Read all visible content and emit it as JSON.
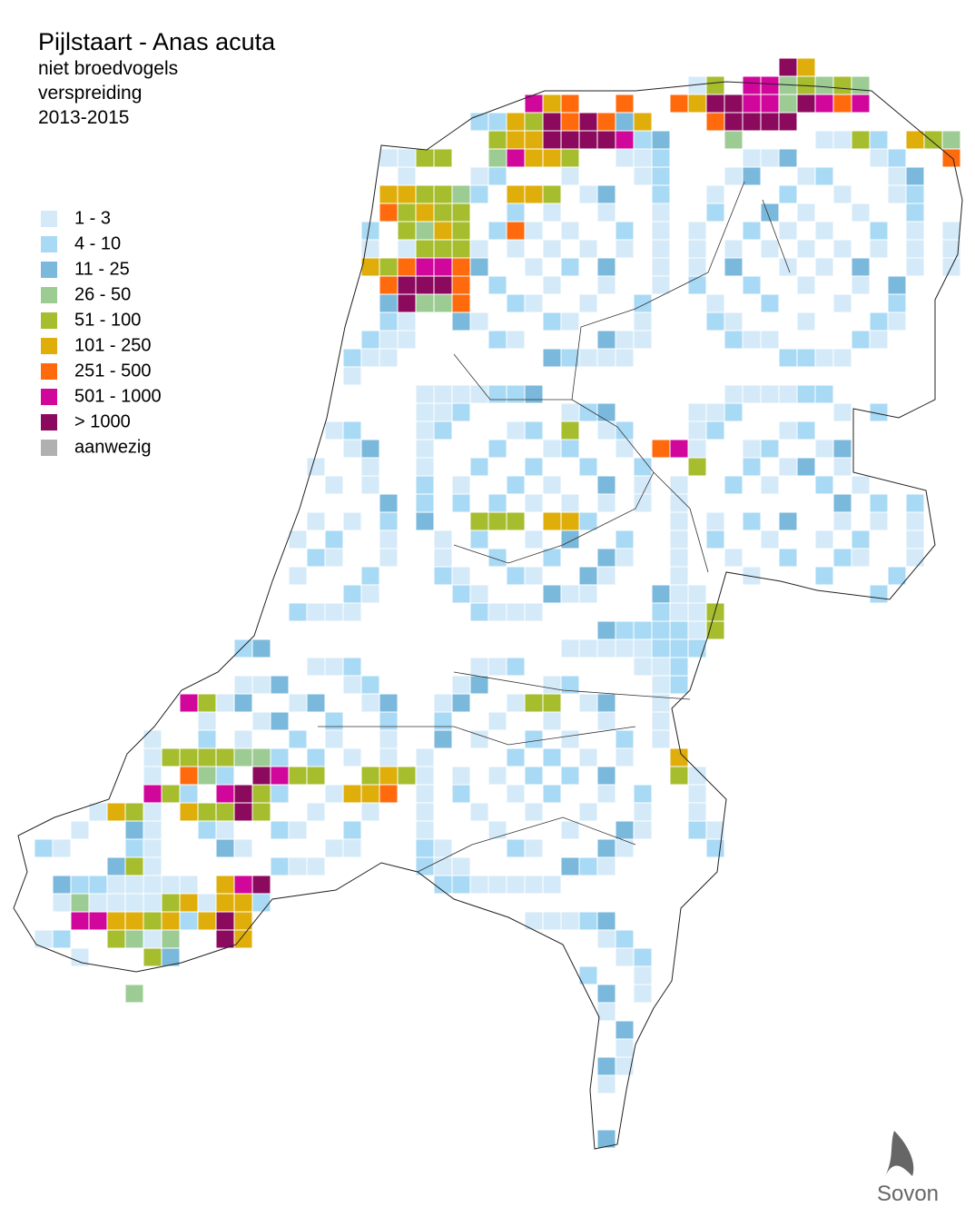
{
  "header": {
    "title": "Pijlstaart - Anas acuta",
    "subtitle_1": "niet broedvogels",
    "subtitle_2": "verspreiding",
    "period": "2013-2015"
  },
  "legend": [
    {
      "label": "1 - 3",
      "color": "#d4eaf8"
    },
    {
      "label": "4 - 10",
      "color": "#a9daf5"
    },
    {
      "label": "11 - 25",
      "color": "#7ab8dc"
    },
    {
      "label": "26 - 50",
      "color": "#9ccc94"
    },
    {
      "label": "51 - 100",
      "color": "#a6bd2e"
    },
    {
      "label": "101 - 250",
      "color": "#dfae0a"
    },
    {
      "label": "251 - 500",
      "color": "#ff6a0d"
    },
    {
      "label": "501 - 1000",
      "color": "#d1069b"
    },
    {
      "label": "> 1000",
      "color": "#8b0a5d"
    },
    {
      "label": "aanwezig",
      "color": "#b0b0b0"
    }
  ],
  "logo": "Sovon"
}
